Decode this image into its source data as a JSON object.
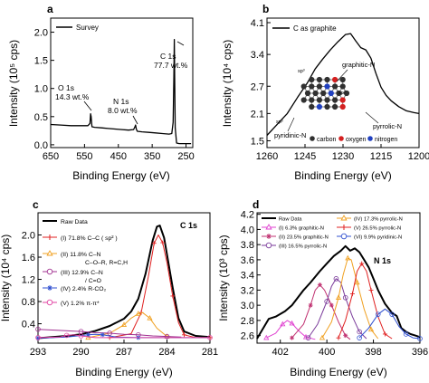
{
  "chart_data": [
    {
      "panel": "a",
      "type": "line",
      "xlabel": "Binding Energy (eV)",
      "ylabel": "Intensity (10⁵ cps)",
      "xlim": [
        650,
        230
      ],
      "ylim": [
        -0.05,
        2.25
      ],
      "x_ticks": [
        "650",
        "550",
        "450",
        "350",
        "250"
      ],
      "y_ticks": [
        "0.0",
        "0.5",
        "1.0",
        "1.5",
        "2.0"
      ],
      "legend": [
        "Survey"
      ],
      "annotations": [
        {
          "lines": [
            "O 1s",
            "14.3 wt.%"
          ],
          "at": [
            531,
            0.52
          ]
        },
        {
          "lines": [
            "N 1s",
            "8.0 wt.%"
          ],
          "at": [
            399,
            0.34
          ]
        },
        {
          "lines": [
            "C 1s",
            "77.7 wt.%"
          ],
          "at": [
            284.5,
            1.88
          ]
        }
      ],
      "series": [
        {
          "name": "Survey",
          "points": [
            [
              650,
              0.36
            ],
            [
              620,
              0.35
            ],
            [
              590,
              0.34
            ],
            [
              560,
              0.34
            ],
            [
              540,
              0.34
            ],
            [
              534,
              0.38
            ],
            [
              532,
              0.55
            ],
            [
              530.5,
              0.5
            ],
            [
              528,
              0.32
            ],
            [
              520,
              0.31
            ],
            [
              500,
              0.3
            ],
            [
              480,
              0.29
            ],
            [
              460,
              0.28
            ],
            [
              440,
              0.27
            ],
            [
              420,
              0.26
            ],
            [
              405,
              0.27
            ],
            [
              401,
              0.32
            ],
            [
              399,
              0.35
            ],
            [
              397,
              0.28
            ],
            [
              394,
              0.24
            ],
            [
              380,
              0.23
            ],
            [
              360,
              0.22
            ],
            [
              340,
              0.21
            ],
            [
              320,
              0.2
            ],
            [
              300,
              0.19
            ],
            [
              292,
              0.2
            ],
            [
              288,
              0.4
            ],
            [
              286,
              1.2
            ],
            [
              284.6,
              1.87
            ],
            [
              283.5,
              1.2
            ],
            [
              282,
              0.3
            ],
            [
              278,
              0.03
            ],
            [
              270,
              0.02
            ],
            [
              260,
              0.02
            ],
            [
              250,
              0.02
            ],
            [
              235,
              0.02
            ]
          ]
        }
      ]
    },
    {
      "panel": "b",
      "type": "line",
      "xlabel": "Binding Energy (eV)",
      "ylabel": "Intensity (10⁴ cps)",
      "xlim": [
        1260,
        1200
      ],
      "ylim": [
        1.35,
        4.2
      ],
      "x_ticks": [
        "1260",
        "1245",
        "1230",
        "1215",
        "1200"
      ],
      "y_ticks": [
        "1.5",
        "2.1",
        "2.7",
        "3.4",
        "4.1"
      ],
      "legend": [
        "C as graphite"
      ],
      "inset_labels": {
        "sp3": "sp³",
        "sp2": "sp²",
        "graphitic": "graphitic-N",
        "pyrrolic": "pyrrolic-N",
        "pyridinic": "pyridinic-N"
      },
      "inset_legend": [
        "carbon",
        "oxygen",
        "nitrogen"
      ],
      "colors": {
        "carbon": "#303030",
        "oxygen": "#d42020",
        "nitrogen": "#2040c0"
      },
      "series": [
        {
          "name": "C as graphite",
          "points": [
            [
              1260,
              1.62
            ],
            [
              1256,
              1.86
            ],
            [
              1252,
              2.1
            ],
            [
              1248,
              2.45
            ],
            [
              1244,
              2.78
            ],
            [
              1241,
              3.08
            ],
            [
              1238,
              3.3
            ],
            [
              1235,
              3.5
            ],
            [
              1232,
              3.68
            ],
            [
              1229,
              3.84
            ],
            [
              1227,
              3.86
            ],
            [
              1225,
              3.7
            ],
            [
              1223,
              3.55
            ],
            [
              1221,
              3.5
            ],
            [
              1219,
              3.32
            ],
            [
              1217,
              2.98
            ],
            [
              1215,
              2.68
            ],
            [
              1213,
              2.5
            ],
            [
              1211,
              2.38
            ],
            [
              1208,
              2.25
            ],
            [
              1205,
              2.16
            ],
            [
              1202,
              2.12
            ],
            [
              1200,
              2.1
            ]
          ]
        }
      ]
    },
    {
      "panel": "c",
      "type": "line",
      "title": "C 1s",
      "xlabel": "Binding Energy (eV)",
      "ylabel": "Intensity (10⁴ cps)",
      "xlim": [
        293,
        281
      ],
      "ylim": [
        0.05,
        2.4
      ],
      "x_ticks": [
        "293",
        "290",
        "287",
        "284",
        "281"
      ],
      "y_ticks": [
        "0.4",
        "0.8",
        "1.2",
        "1.6",
        "2.0"
      ],
      "legend": [
        {
          "label": "Raw Data",
          "line2": "",
          "color": "#000000"
        },
        {
          "label": "(I)  71.8% C–C ( sp² )",
          "line2": "",
          "color": "#e02020"
        },
        {
          "label": "(II)  11.8% C–N",
          "line2": "C–O–R, R=C,H",
          "color": "#f0a020"
        },
        {
          "label": "(III)  12.9% C–N",
          "line2": "/ C=O",
          "color": "#a03090"
        },
        {
          "label": "(IV)  2.4% R-CO₂",
          "line2": "",
          "color": "#3050d0"
        },
        {
          "label": "(V)  1.2% π-π*",
          "line2": "",
          "color": "#e040a0"
        }
      ],
      "series": [
        {
          "name": "Raw Data",
          "points": [
            [
              293,
              0.14
            ],
            [
              291,
              0.18
            ],
            [
              290,
              0.21
            ],
            [
              289,
              0.27
            ],
            [
              288,
              0.36
            ],
            [
              287,
              0.49
            ],
            [
              286.5,
              0.62
            ],
            [
              286,
              0.85
            ],
            [
              285.5,
              1.3
            ],
            [
              285,
              1.9
            ],
            [
              284.7,
              2.15
            ],
            [
              284.5,
              2.17
            ],
            [
              284.2,
              1.95
            ],
            [
              284,
              1.65
            ],
            [
              283.6,
              1.05
            ],
            [
              283.2,
              0.5
            ],
            [
              282.8,
              0.26
            ],
            [
              282,
              0.18
            ],
            [
              281,
              0.16
            ]
          ]
        },
        {
          "name": "(I)",
          "points": [
            [
              288,
              0.15
            ],
            [
              286.5,
              0.22
            ],
            [
              285.8,
              0.6
            ],
            [
              285.3,
              1.25
            ],
            [
              284.9,
              1.85
            ],
            [
              284.6,
              2.0
            ],
            [
              284.3,
              1.86
            ],
            [
              284,
              1.5
            ],
            [
              283.6,
              0.9
            ],
            [
              283.2,
              0.42
            ],
            [
              282.8,
              0.2
            ],
            [
              282,
              0.15
            ],
            [
              281,
              0.15
            ]
          ]
        },
        {
          "name": "(II)",
          "points": [
            [
              289.5,
              0.15
            ],
            [
              288,
              0.23
            ],
            [
              287,
              0.38
            ],
            [
              286.5,
              0.5
            ],
            [
              286,
              0.58
            ],
            [
              285.7,
              0.6
            ],
            [
              285.2,
              0.5
            ],
            [
              284.7,
              0.32
            ],
            [
              284,
              0.17
            ],
            [
              283,
              0.15
            ]
          ]
        },
        {
          "name": "(III)",
          "points": [
            [
              293,
              0.3
            ],
            [
              291.5,
              0.28
            ],
            [
              290,
              0.26
            ],
            [
              289,
              0.24
            ],
            [
              288,
              0.23
            ],
            [
              287,
              0.21
            ],
            [
              286,
              0.2
            ],
            [
              285,
              0.18
            ],
            [
              284,
              0.17
            ],
            [
              283,
              0.16
            ]
          ]
        },
        {
          "name": "(IV)",
          "points": [
            [
              293,
              0.14
            ],
            [
              291,
              0.16
            ],
            [
              289.5,
              0.2
            ],
            [
              289,
              0.21
            ],
            [
              288.5,
              0.2
            ],
            [
              287.5,
              0.16
            ],
            [
              286,
              0.15
            ],
            [
              281,
              0.15
            ]
          ]
        },
        {
          "name": "(V)",
          "points": [
            [
              293,
              0.15
            ],
            [
              291.5,
              0.16
            ],
            [
              291,
              0.19
            ],
            [
              290.5,
              0.2
            ],
            [
              290,
              0.18
            ],
            [
              289,
              0.15
            ],
            [
              281,
              0.15
            ]
          ]
        }
      ]
    },
    {
      "panel": "d",
      "type": "line",
      "title": "N 1s",
      "xlabel": "Binding Energy (eV)",
      "ylabel": "Intensity (10³ cps)",
      "xlim": [
        403,
        396
      ],
      "ylim": [
        2.5,
        4.22
      ],
      "x_ticks": [
        "402",
        "400",
        "398",
        "396"
      ],
      "y_ticks": [
        "2.6",
        "2.8",
        "3.0",
        "3.2",
        "3.4",
        "3.6",
        "3.8",
        "4.0",
        "4.2"
      ],
      "legend": [
        {
          "label": "Raw Data",
          "color": "#000000"
        },
        {
          "label": "(IV)  17.3% pyrrolic-N",
          "color": "#f0a020"
        },
        {
          "label": "(I)  6.3% graphitic-N",
          "color": "#e040d0"
        },
        {
          "label": "(V)  26.5% pyrrolic-N",
          "color": "#e02020"
        },
        {
          "label": "(II)  23.5% graphitic-N",
          "color": "#c03070"
        },
        {
          "label": "(VI)  9.9% pyridinic-N",
          "color": "#3050d0"
        },
        {
          "label": "(III)  16.5% pyrrolic-N",
          "color": "#7a3a9a"
        }
      ],
      "series": [
        {
          "name": "Raw Data",
          "points": [
            [
              403,
              2.56
            ],
            [
              402.5,
              2.82
            ],
            [
              402.2,
              2.85
            ],
            [
              401.8,
              2.92
            ],
            [
              401.5,
              3.0
            ],
            [
              401,
              3.2
            ],
            [
              400.7,
              3.3
            ],
            [
              400.3,
              3.45
            ],
            [
              400,
              3.55
            ],
            [
              399.7,
              3.65
            ],
            [
              399.4,
              3.72
            ],
            [
              399.2,
              3.78
            ],
            [
              399,
              3.72
            ],
            [
              398.8,
              3.75
            ],
            [
              398.6,
              3.7
            ],
            [
              398.4,
              3.6
            ],
            [
              398.2,
              3.5
            ],
            [
              398,
              3.35
            ],
            [
              397.8,
              3.2
            ],
            [
              397.5,
              3.02
            ],
            [
              397.2,
              2.9
            ],
            [
              397,
              2.86
            ],
            [
              396.8,
              2.7
            ],
            [
              396.6,
              2.65
            ],
            [
              396.4,
              2.62
            ],
            [
              396.2,
              2.6
            ],
            [
              396,
              2.58
            ]
          ]
        },
        {
          "name": "(I)",
          "points": [
            [
              402.6,
              2.57
            ],
            [
              402.2,
              2.63
            ],
            [
              401.9,
              2.75
            ],
            [
              401.7,
              2.8
            ],
            [
              401.5,
              2.76
            ],
            [
              401.2,
              2.66
            ],
            [
              400.9,
              2.58
            ],
            [
              400.5,
              2.55
            ]
          ]
        },
        {
          "name": "(II)",
          "points": [
            [
              401.5,
              2.57
            ],
            [
              401,
              2.75
            ],
            [
              400.7,
              3.0
            ],
            [
              400.5,
              3.2
            ],
            [
              400.3,
              3.27
            ],
            [
              400.1,
              3.2
            ],
            [
              399.8,
              3.0
            ],
            [
              399.5,
              2.78
            ],
            [
              399.2,
              2.6
            ],
            [
              399,
              2.55
            ]
          ]
        },
        {
          "name": "(III)",
          "points": [
            [
              400.8,
              2.57
            ],
            [
              400.4,
              2.75
            ],
            [
              400,
              3.05
            ],
            [
              399.8,
              3.25
            ],
            [
              399.6,
              3.35
            ],
            [
              399.4,
              3.3
            ],
            [
              399.2,
              3.1
            ],
            [
              398.9,
              2.85
            ],
            [
              398.6,
              2.65
            ],
            [
              398.3,
              2.56
            ]
          ]
        },
        {
          "name": "(IV)",
          "points": [
            [
              400.2,
              2.57
            ],
            [
              399.8,
              2.78
            ],
            [
              399.5,
              3.1
            ],
            [
              399.3,
              3.4
            ],
            [
              399.1,
              3.62
            ],
            [
              398.95,
              3.6
            ],
            [
              398.7,
              3.3
            ],
            [
              398.4,
              2.95
            ],
            [
              398.1,
              2.68
            ],
            [
              397.8,
              2.56
            ]
          ]
        },
        {
          "name": "(V)",
          "points": [
            [
              399.5,
              2.57
            ],
            [
              399.2,
              2.8
            ],
            [
              398.9,
              3.15
            ],
            [
              398.7,
              3.45
            ],
            [
              398.5,
              3.55
            ],
            [
              398.3,
              3.45
            ],
            [
              398.1,
              3.2
            ],
            [
              397.8,
              2.85
            ],
            [
              397.5,
              2.62
            ],
            [
              397.2,
              2.56
            ]
          ]
        },
        {
          "name": "(VI)",
          "points": [
            [
              398.6,
              2.57
            ],
            [
              398.2,
              2.7
            ],
            [
              397.8,
              2.88
            ],
            [
              397.5,
              2.95
            ],
            [
              397.2,
              2.88
            ],
            [
              396.9,
              2.72
            ],
            [
              396.6,
              2.62
            ],
            [
              396.3,
              2.57
            ],
            [
              396,
              2.56
            ]
          ]
        }
      ]
    }
  ]
}
